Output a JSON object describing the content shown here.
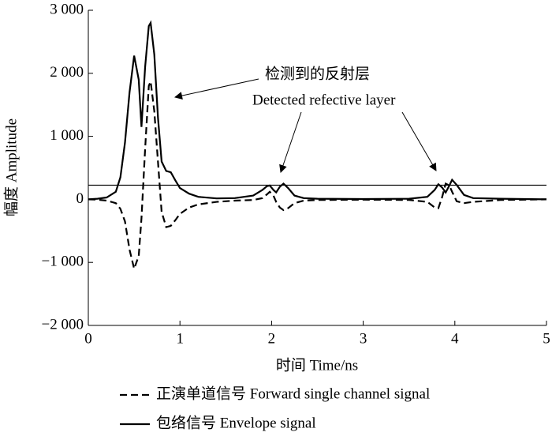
{
  "chart_data": {
    "type": "line",
    "xlabel": "时间 Time/ns",
    "ylabel": "幅度 Amplitude",
    "annotation_cn": "检测到的反射层",
    "annotation_en": "Detected refective layer",
    "x": [
      0,
      0.1,
      0.2,
      0.3,
      0.35,
      0.4,
      0.45,
      0.5,
      0.55,
      0.58,
      0.62,
      0.66,
      0.68,
      0.72,
      0.76,
      0.8,
      0.85,
      0.9,
      0.95,
      1.0,
      1.1,
      1.2,
      1.4,
      1.6,
      1.8,
      1.9,
      1.95,
      1.98,
      2.02,
      2.05,
      2.09,
      2.13,
      2.18,
      2.25,
      2.35,
      2.5,
      3.0,
      3.5,
      3.7,
      3.78,
      3.82,
      3.86,
      3.9,
      3.94,
      3.97,
      4.02,
      4.1,
      4.2,
      4.5,
      5.0
    ],
    "series": [
      {
        "name": "正演单道信号 Forward single channel signal",
        "color": "#000000",
        "dash": true,
        "values": [
          0,
          -5,
          -20,
          -60,
          -150,
          -350,
          -800,
          -1100,
          -900,
          -300,
          800,
          1800,
          1870,
          1400,
          600,
          -200,
          -440,
          -420,
          -330,
          -230,
          -130,
          -80,
          -40,
          -20,
          -10,
          20,
          80,
          120,
          60,
          -40,
          -130,
          -170,
          -140,
          -60,
          -20,
          -10,
          -5,
          -10,
          -40,
          -130,
          -140,
          30,
          250,
          220,
          120,
          -30,
          -60,
          -40,
          -10,
          0
        ]
      },
      {
        "name": "包络信号 Envelope signal",
        "color": "#000000",
        "dash": false,
        "values": [
          0,
          10,
          30,
          120,
          350,
          900,
          1700,
          2280,
          1900,
          1150,
          2100,
          2750,
          2800,
          2300,
          1300,
          600,
          450,
          430,
          300,
          180,
          90,
          40,
          15,
          20,
          60,
          150,
          210,
          220,
          150,
          110,
          200,
          250,
          180,
          60,
          20,
          10,
          5,
          10,
          40,
          150,
          240,
          190,
          110,
          220,
          310,
          230,
          70,
          20,
          10,
          0
        ]
      }
    ],
    "threshold": 225,
    "xlim": [
      0,
      5
    ],
    "xticks": [
      0,
      1,
      2,
      3,
      4,
      5
    ],
    "ylim": [
      -2000,
      3000
    ],
    "yticks": [
      {
        "value": -2000,
        "label": "−2 000"
      },
      {
        "value": -1000,
        "label": "−1 000"
      },
      0,
      {
        "value": 1000,
        "label": "1 000"
      },
      {
        "value": 2000,
        "label": "2 000"
      },
      {
        "value": 3000,
        "label": "3 000"
      }
    ]
  }
}
